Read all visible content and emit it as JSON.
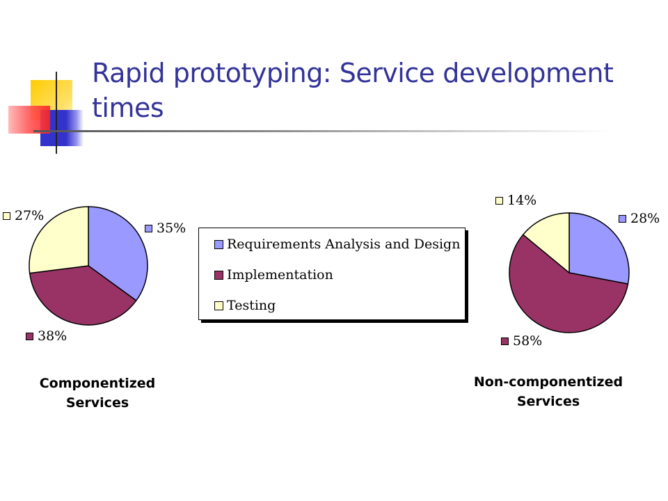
{
  "slide": {
    "title": "Rapid prototyping: Service development times"
  },
  "colors": {
    "requirements": "#9999ff",
    "implementation": "#993366",
    "testing": "#ffffcc",
    "title": "#333399"
  },
  "chart_data": [
    {
      "type": "pie",
      "caption_lines": [
        "Componentized",
        "Services"
      ],
      "categories": [
        "Requirements Analysis and Design",
        "Implementation",
        "Testing"
      ],
      "values": [
        35,
        38,
        27
      ],
      "value_labels": [
        "35%",
        "38%",
        "27%"
      ],
      "legend_placement": "right"
    },
    {
      "type": "pie",
      "caption_lines": [
        "Non-componentized",
        "Services"
      ],
      "categories": [
        "Requirements Analysis and Design",
        "Implementation",
        "Testing"
      ],
      "values": [
        28,
        58,
        14
      ],
      "value_labels": [
        "28%",
        "58%",
        "14%"
      ],
      "legend_placement": "left"
    }
  ],
  "legend": {
    "items": [
      "Requirements Analysis and Design",
      "Implementation",
      "Testing"
    ]
  }
}
